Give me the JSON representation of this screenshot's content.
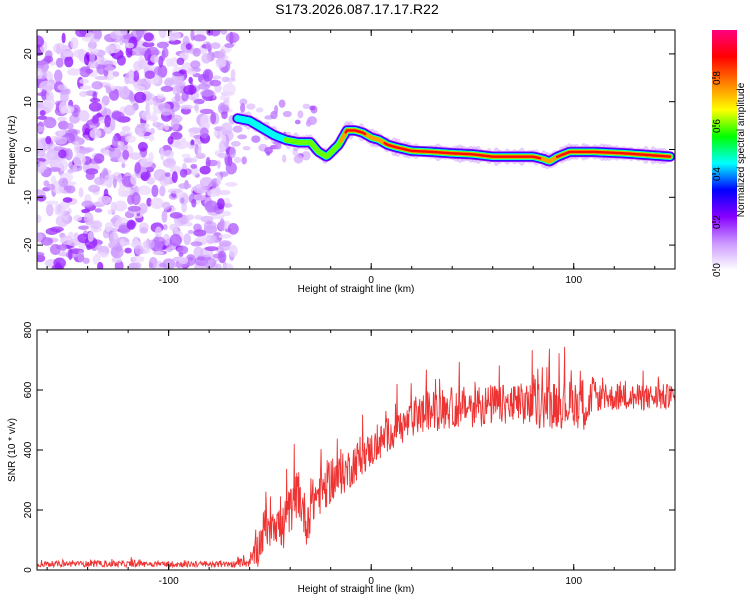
{
  "title": "S173.2026.087.17.17.R22",
  "chart_data": [
    {
      "type": "heatmap",
      "name": "spectrogram",
      "xlabel": "Height of straight line (km)",
      "ylabel": "Frequency (Hz)",
      "xlim": [
        -165,
        150
      ],
      "ylim": [
        -25,
        25
      ],
      "xticks": [
        -100,
        0,
        100
      ],
      "xtick_labels": [
        "-100",
        "0",
        "100"
      ],
      "yticks": [
        -20,
        -10,
        0,
        10,
        20
      ],
      "ytick_labels": [
        "-20",
        "-10",
        "0",
        "10",
        "20"
      ],
      "noise_region": {
        "x_from": -165,
        "x_to": -68,
        "y_from": -25,
        "y_to": 25
      },
      "ridge": {
        "x": [
          -66,
          -60,
          -54,
          -48,
          -42,
          -36,
          -30,
          -26,
          -22,
          -16,
          -12,
          -8,
          -4,
          0,
          4,
          8,
          12,
          20,
          30,
          40,
          50,
          60,
          70,
          80,
          85,
          88,
          92,
          98,
          110,
          125,
          148
        ],
        "y": [
          6.5,
          6.0,
          4.5,
          3.0,
          2.0,
          1.5,
          1.5,
          -0.5,
          -1.5,
          1.0,
          4.0,
          4.0,
          3.5,
          2.5,
          2.0,
          1.0,
          0.5,
          -0.3,
          -0.5,
          -0.8,
          -1.0,
          -1.5,
          -1.5,
          -1.5,
          -2.0,
          -2.5,
          -1.5,
          -0.5,
          -0.5,
          -0.8,
          -1.5
        ],
        "amplitude": [
          0.55,
          0.6,
          0.55,
          0.5,
          0.6,
          0.65,
          0.6,
          0.6,
          0.65,
          0.7,
          0.95,
          0.95,
          0.9,
          0.85,
          0.85,
          0.9,
          0.9,
          0.9,
          0.95,
          0.95,
          0.95,
          0.95,
          0.95,
          0.95,
          0.85,
          0.8,
          0.9,
          0.95,
          0.95,
          0.95,
          0.95
        ]
      },
      "colorbar": {
        "label": "Normalized spectral amplitude",
        "range": [
          0.0,
          1.0
        ],
        "ticks": [
          0.0,
          0.2,
          0.4,
          0.6,
          0.8
        ],
        "tick_labels": [
          "0.0",
          "0.2",
          "0.4",
          "0.6",
          "0.8"
        ],
        "colors": [
          "#ffffff",
          "#cc99ff",
          "#8800ff",
          "#0000ff",
          "#00ffff",
          "#00ff00",
          "#ffff00",
          "#ff8000",
          "#ff0000",
          "#ff0080"
        ]
      }
    },
    {
      "type": "line",
      "name": "snr",
      "xlabel": "Height of straight line (km)",
      "ylabel": "SNR (10 * v/v)",
      "xlim": [
        -165,
        150
      ],
      "ylim": [
        0,
        800
      ],
      "xticks": [
        -100,
        0,
        100
      ],
      "xtick_labels": [
        "-100",
        "0",
        "100"
      ],
      "yticks": [
        0,
        200,
        400,
        600,
        800
      ],
      "ytick_labels": [
        "0",
        "200",
        "400",
        "600",
        "800"
      ],
      "color": "#ee3333",
      "series": [
        {
          "name": "SNR",
          "x": [
            -165,
            -130,
            -100,
            -70,
            -60,
            -56,
            -52,
            -48,
            -44,
            -40,
            -36,
            -32,
            -28,
            -24,
            -20,
            -16,
            -12,
            -8,
            -4,
            0,
            4,
            8,
            12,
            16,
            20,
            25,
            30,
            40,
            50,
            60,
            70,
            80,
            90,
            100,
            105,
            110,
            111,
            120,
            130,
            140,
            150
          ],
          "base": [
            20,
            20,
            20,
            18,
            25,
            70,
            150,
            180,
            130,
            200,
            260,
            160,
            240,
            270,
            300,
            310,
            330,
            360,
            380,
            400,
            420,
            450,
            470,
            480,
            500,
            520,
            530,
            540,
            545,
            550,
            550,
            550,
            550,
            555,
            555,
            560,
            575,
            575,
            575,
            575,
            575
          ],
          "jitter": [
            10,
            10,
            10,
            10,
            15,
            60,
            80,
            90,
            80,
            80,
            80,
            80,
            80,
            80,
            80,
            70,
            70,
            70,
            60,
            60,
            60,
            60,
            60,
            60,
            60,
            70,
            70,
            70,
            70,
            70,
            70,
            80,
            80,
            80,
            90,
            90,
            45,
            45,
            45,
            45,
            45
          ]
        }
      ]
    }
  ]
}
